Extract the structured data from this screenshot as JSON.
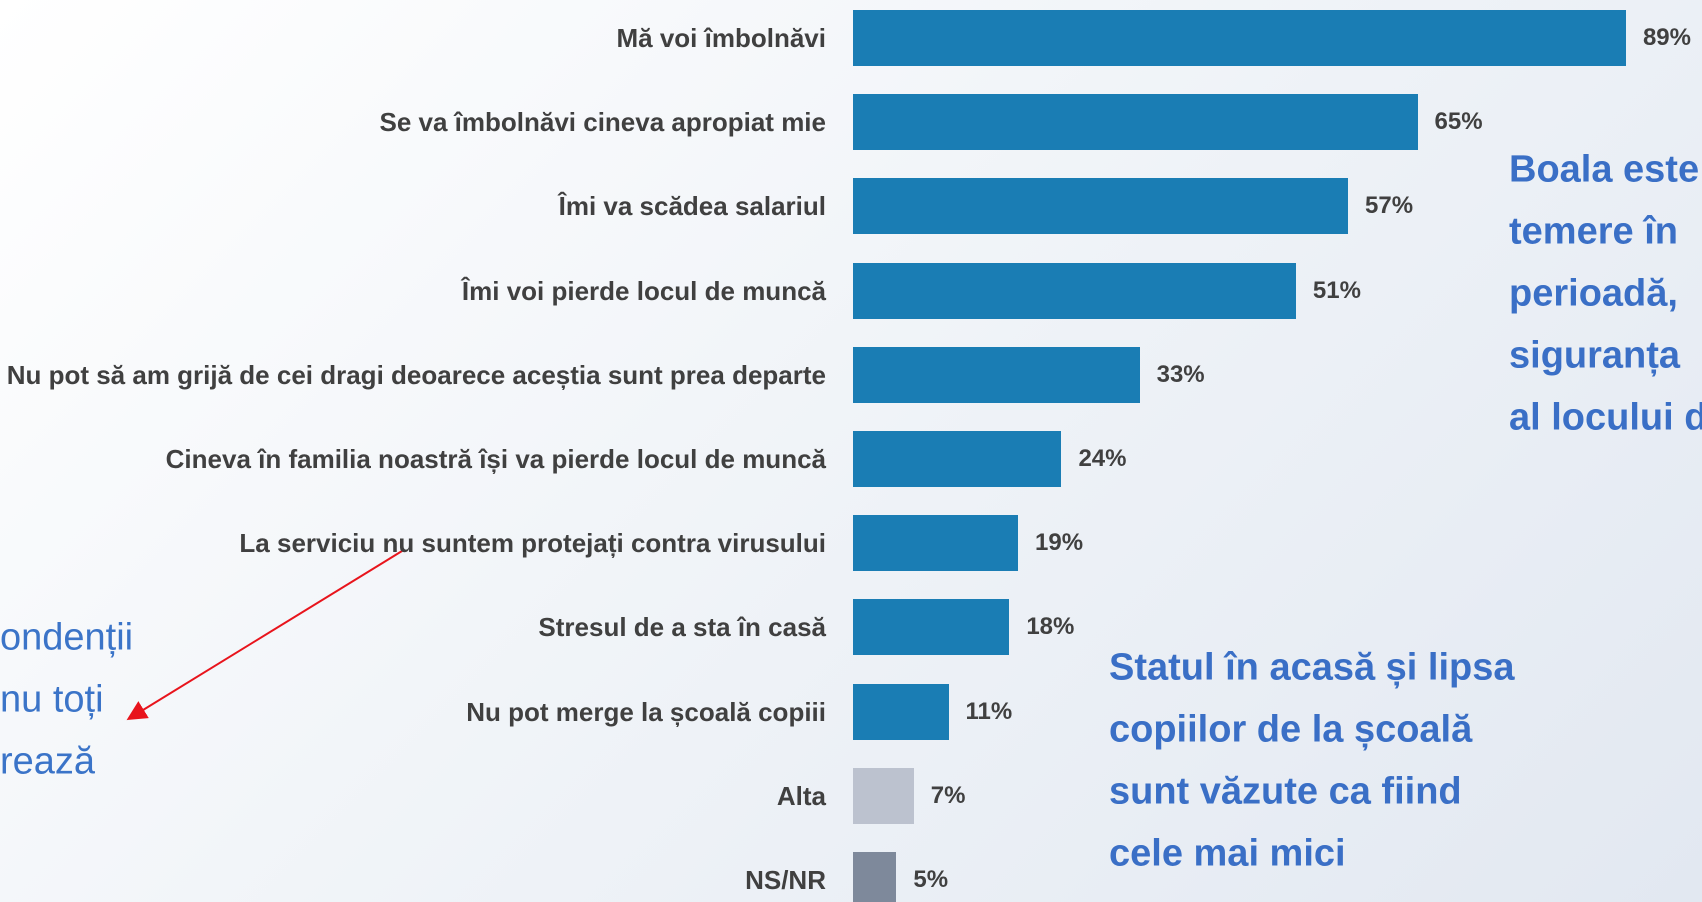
{
  "chart_data": {
    "type": "barh",
    "categories": [
      "Mă voi îmbolnăvi",
      "Se va îmbolnăvi cineva apropiat mie",
      "Îmi va scădea salariul",
      "Îmi voi pierde locul de muncă",
      "Nu pot să am grijă de cei dragi deoarece aceștia sunt prea departe",
      "Cineva în familia noastră își va pierde locul de muncă",
      "La serviciu nu suntem protejați contra virusului",
      "Stresul de a sta în casă",
      "Nu pot merge la școală copiii",
      "Alta",
      "NS/NR"
    ],
    "values": [
      89,
      65,
      57,
      51,
      33,
      24,
      19,
      18,
      11,
      7,
      5
    ],
    "value_labels": [
      "89%",
      "65%",
      "57%",
      "51%",
      "33%",
      "24%",
      "19%",
      "18%",
      "11%",
      "7%",
      "5%"
    ],
    "colors": [
      "#1a7db4",
      "#1a7db4",
      "#1a7db4",
      "#1a7db4",
      "#1a7db4",
      "#1a7db4",
      "#1a7db4",
      "#1a7db4",
      "#1a7db4",
      "#bcc2cf",
      "#7e899b"
    ],
    "annotations": [
      {
        "lines": [
          "Boala este",
          "temere în",
          "perioadă,",
          "siguranța",
          "al locului d"
        ]
      },
      {
        "lines": [
          "ondenții",
          "nu toți",
          "rează"
        ]
      },
      {
        "lines": [
          "Statul în acasă și lipsa",
          "copiilor de la școală",
          "sunt văzute ca fiind",
          "cele mai mici"
        ]
      }
    ]
  }
}
